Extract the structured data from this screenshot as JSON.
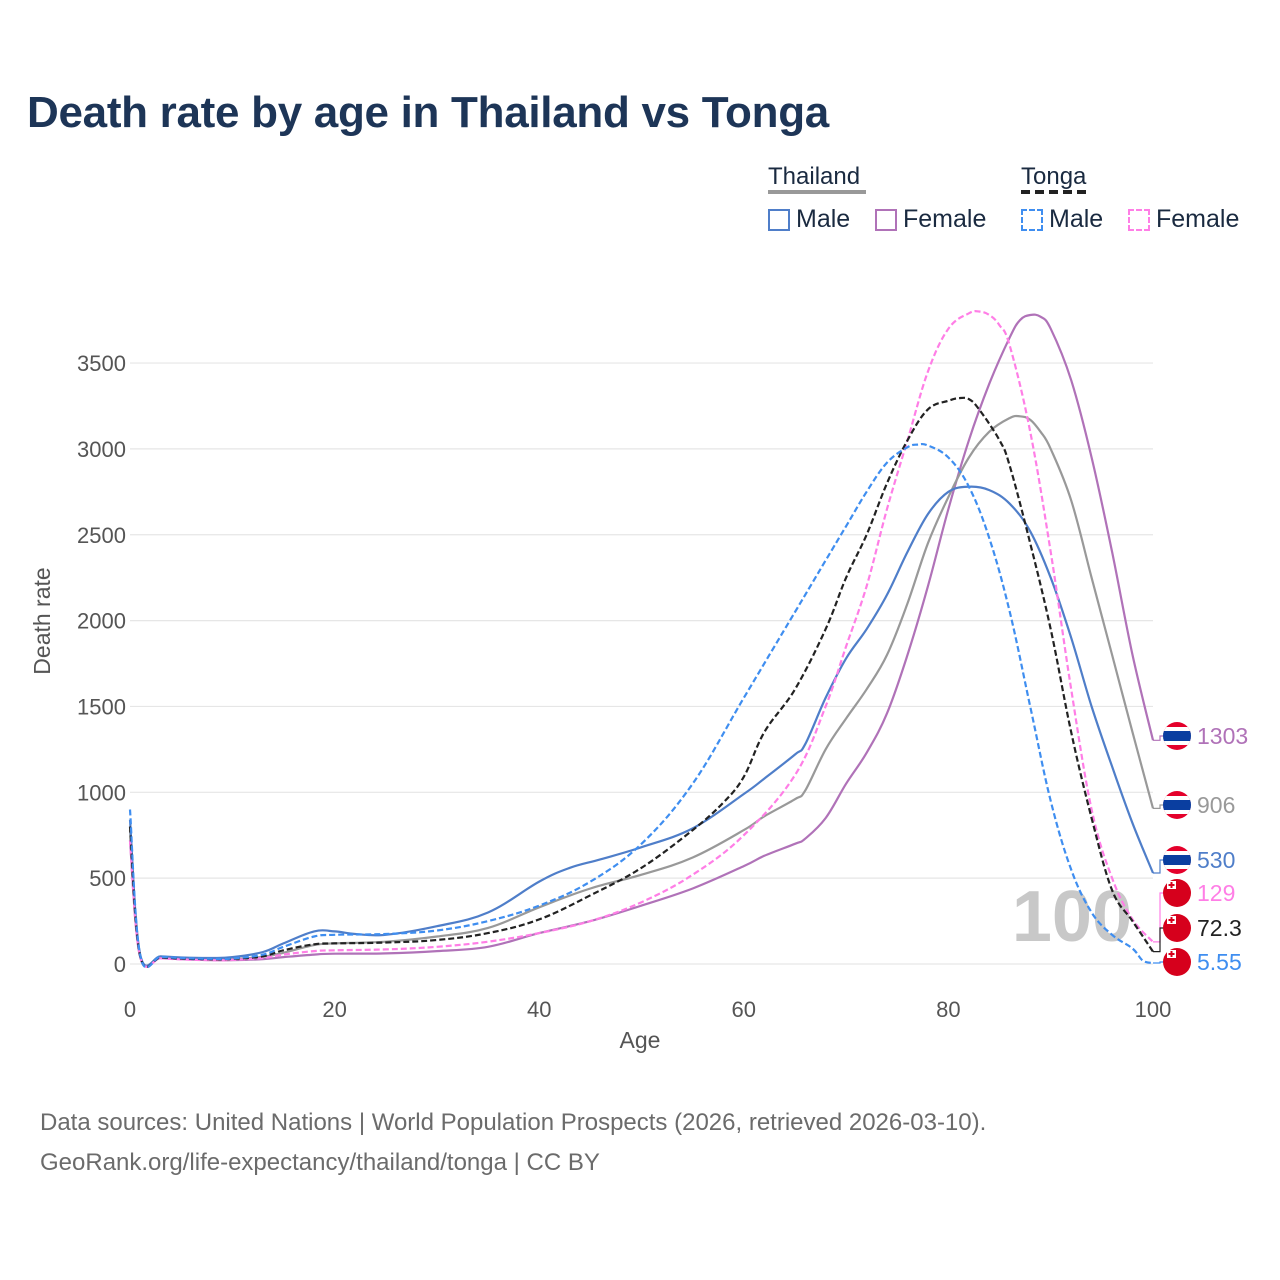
{
  "title": "Death rate by age in Thailand vs Tonga",
  "legend": {
    "groups": [
      {
        "name": "Thailand",
        "line_style": "solid",
        "line_color": "#999999",
        "items": [
          {
            "label": "Male",
            "color": "#4f7ec9"
          },
          {
            "label": "Female",
            "color": "#b072b8"
          }
        ]
      },
      {
        "name": "Tonga",
        "line_style": "dashed",
        "line_color": "#222222",
        "items": [
          {
            "label": "Male",
            "color": "#3f8ef0"
          },
          {
            "label": "Female",
            "color": "#ff7ee6"
          }
        ]
      }
    ]
  },
  "sources_line1": "Data sources: United Nations | World Population Prospects (2026, retrieved 2026-03-10).",
  "sources_line2": "GeoRank.org/life-expectancy/thailand/tonga | CC BY",
  "chart_data": {
    "type": "line",
    "title": "Death rate by age in Thailand vs Tonga",
    "xlabel": "Age",
    "ylabel": "Death rate",
    "xlim": [
      0,
      100
    ],
    "ylim": [
      0,
      3800
    ],
    "xticks": [
      0,
      20,
      40,
      60,
      80,
      100
    ],
    "yticks": [
      0,
      500,
      1000,
      1500,
      2000,
      2500,
      3000,
      3500
    ],
    "grid": true,
    "watermark": "100",
    "series": [
      {
        "name": "Thailand Female",
        "country": "Thailand",
        "sex": "Female",
        "color": "#b072b8",
        "dash": false,
        "end_label": "1303",
        "flag": "thailand",
        "x": [
          0,
          1,
          3,
          5,
          8,
          10,
          13,
          15,
          18,
          20,
          25,
          30,
          35,
          40,
          45,
          50,
          55,
          60,
          62,
          65,
          66,
          68,
          70,
          72,
          74,
          76,
          78,
          80,
          82,
          84,
          86,
          87,
          88,
          89,
          90,
          92,
          94,
          96,
          98,
          100
        ],
        "y": [
          720,
          40,
          35,
          28,
          22,
          22,
          28,
          40,
          55,
          60,
          62,
          75,
          100,
          180,
          250,
          340,
          440,
          570,
          630,
          700,
          730,
          850,
          1050,
          1230,
          1460,
          1800,
          2200,
          2650,
          3050,
          3380,
          3650,
          3750,
          3780,
          3770,
          3700,
          3400,
          2950,
          2400,
          1800,
          1303
        ]
      },
      {
        "name": "Thailand Total",
        "country": "Thailand",
        "sex": "Total",
        "color": "#999999",
        "dash": false,
        "end_label": "906",
        "flag": "thailand",
        "x": [
          0,
          1,
          3,
          5,
          8,
          10,
          13,
          15,
          18,
          20,
          25,
          30,
          35,
          40,
          45,
          50,
          55,
          60,
          62,
          65,
          66,
          68,
          70,
          72,
          74,
          76,
          78,
          80,
          82,
          84,
          86,
          87,
          88,
          89,
          90,
          92,
          94,
          96,
          98,
          100
        ],
        "y": [
          780,
          50,
          42,
          35,
          28,
          28,
          42,
          65,
          110,
          120,
          130,
          160,
          210,
          330,
          440,
          520,
          620,
          780,
          860,
          960,
          1010,
          1250,
          1430,
          1600,
          1800,
          2100,
          2450,
          2720,
          2950,
          3100,
          3180,
          3190,
          3170,
          3100,
          3000,
          2700,
          2250,
          1800,
          1350,
          906
        ]
      },
      {
        "name": "Thailand Male",
        "country": "Thailand",
        "sex": "Male",
        "color": "#4f7ec9",
        "dash": false,
        "end_label": "530",
        "flag": "thailand",
        "x": [
          0,
          1,
          3,
          5,
          8,
          10,
          13,
          15,
          18,
          20,
          22,
          25,
          30,
          35,
          40,
          43,
          46,
          50,
          55,
          60,
          62,
          65,
          66,
          68,
          70,
          72,
          74,
          76,
          78,
          80,
          82,
          84,
          86,
          88,
          90,
          92,
          94,
          96,
          98,
          100
        ],
        "y": [
          840,
          55,
          45,
          38,
          35,
          40,
          70,
          120,
          190,
          190,
          175,
          170,
          220,
          300,
          480,
          560,
          610,
          680,
          790,
          990,
          1080,
          1220,
          1280,
          1550,
          1780,
          1950,
          2150,
          2400,
          2620,
          2750,
          2780,
          2760,
          2680,
          2520,
          2250,
          1900,
          1500,
          1150,
          820,
          530
        ]
      },
      {
        "name": "Tonga Female",
        "country": "Tonga",
        "sex": "Female",
        "color": "#ff7ee6",
        "dash": true,
        "end_label": "129",
        "flag": "tonga",
        "x": [
          0,
          1,
          3,
          5,
          8,
          10,
          13,
          15,
          18,
          20,
          25,
          30,
          35,
          40,
          45,
          50,
          55,
          60,
          65,
          68,
          70,
          72,
          74,
          76,
          78,
          80,
          82,
          83,
          84,
          85,
          86,
          88,
          90,
          92,
          94,
          96,
          98,
          100
        ],
        "y": [
          720,
          40,
          33,
          27,
          22,
          24,
          35,
          55,
          75,
          80,
          85,
          100,
          130,
          180,
          250,
          360,
          520,
          750,
          1100,
          1500,
          1850,
          2200,
          2650,
          3050,
          3450,
          3700,
          3790,
          3800,
          3780,
          3720,
          3600,
          3100,
          2400,
          1600,
          900,
          500,
          260,
          129
        ]
      },
      {
        "name": "Tonga Total",
        "country": "Tonga",
        "sex": "Total",
        "color": "#222222",
        "dash": true,
        "end_label": "72.3",
        "flag": "tonga",
        "x": [
          0,
          1,
          3,
          5,
          8,
          10,
          13,
          15,
          18,
          20,
          25,
          30,
          35,
          40,
          45,
          50,
          55,
          58,
          60,
          62,
          65,
          68,
          70,
          72,
          74,
          76,
          78,
          80,
          81,
          82,
          83,
          85,
          86,
          88,
          90,
          92,
          94,
          96,
          98,
          100
        ],
        "y": [
          800,
          45,
          38,
          32,
          28,
          30,
          45,
          80,
          115,
          120,
          125,
          140,
          180,
          260,
          400,
          560,
          780,
          940,
          1090,
          1350,
          1600,
          1950,
          2250,
          2500,
          2800,
          3050,
          3230,
          3280,
          3295,
          3290,
          3230,
          3050,
          2900,
          2450,
          1950,
          1350,
          850,
          430,
          250,
          72.3
        ]
      },
      {
        "name": "Tonga Male",
        "country": "Tonga",
        "sex": "Male",
        "color": "#3f8ef0",
        "dash": true,
        "end_label": "5.55",
        "flag": "tonga",
        "x": [
          0,
          1,
          3,
          5,
          8,
          10,
          13,
          15,
          18,
          20,
          25,
          30,
          35,
          40,
          45,
          50,
          55,
          60,
          65,
          68,
          70,
          72,
          74,
          76,
          77,
          78,
          80,
          82,
          84,
          86,
          88,
          90,
          92,
          94,
          96,
          98,
          99,
          100
        ],
        "y": [
          900,
          50,
          42,
          35,
          30,
          32,
          55,
          100,
          160,
          170,
          175,
          195,
          250,
          340,
          480,
          700,
          1050,
          1550,
          2050,
          2350,
          2550,
          2750,
          2920,
          3010,
          3025,
          3020,
          2950,
          2780,
          2480,
          2050,
          1500,
          950,
          550,
          300,
          170,
          90,
          20,
          5.55
        ]
      }
    ]
  }
}
